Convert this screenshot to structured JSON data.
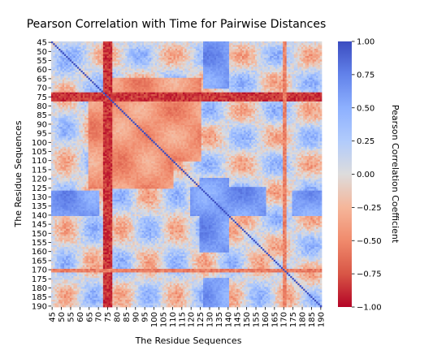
{
  "chart_data": {
    "type": "heatmap",
    "title": "Pearson Correlation with Time for Pairwise Distances",
    "xlabel": "The Residue Sequences",
    "ylabel": "The Residue Sequences",
    "x_tick_labels": [
      "45",
      "50",
      "55",
      "60",
      "65",
      "70",
      "75",
      "80",
      "85",
      "90",
      "95",
      "100",
      "105",
      "110",
      "115",
      "120",
      "125",
      "130",
      "135",
      "140",
      "145",
      "150",
      "155",
      "160",
      "165",
      "170",
      "175",
      "180",
      "185",
      "190"
    ],
    "y_tick_labels": [
      "45",
      "50",
      "55",
      "60",
      "65",
      "70",
      "75",
      "80",
      "85",
      "90",
      "95",
      "100",
      "105",
      "110",
      "115",
      "120",
      "125",
      "130",
      "135",
      "140",
      "145",
      "150",
      "155",
      "160",
      "165",
      "170",
      "175",
      "180",
      "185",
      "190"
    ],
    "residue_range": [
      45,
      191
    ],
    "colorbar": {
      "label": "Pearson Correlation Coefficient",
      "colormap": "coolwarm",
      "vmin": -1.0,
      "vmax": 1.0,
      "ticks": [
        1.0,
        0.75,
        0.5,
        0.25,
        0.0,
        -0.25,
        -0.5,
        -0.75,
        -1.0
      ],
      "tick_labels": [
        "1.00",
        "0.75",
        "0.50",
        "0.25",
        "0.00",
        "−0.25",
        "−0.50",
        "−0.75",
        "−1.00"
      ]
    },
    "features": {
      "diagonal_value": 1.0,
      "strong_negative_bands": [
        {
          "residues": [
            73,
            77
          ],
          "value": -0.85
        },
        {
          "residues": [
            170,
            171
          ],
          "value": -0.55
        }
      ],
      "strong_positive_blocks": [
        {
          "rows": [
            127,
            140
          ],
          "cols": [
            45,
            70
          ],
          "value": 0.6
        },
        {
          "rows": [
            127,
            140
          ],
          "cols": [
            175,
            191
          ],
          "value": 0.55
        },
        {
          "rows": [
            120,
            160
          ],
          "cols": [
            125,
            140
          ],
          "value": 0.6
        }
      ],
      "negative_regions": [
        {
          "rows": [
            65,
            110
          ],
          "cols": [
            78,
            125
          ],
          "value": -0.45
        }
      ]
    }
  }
}
